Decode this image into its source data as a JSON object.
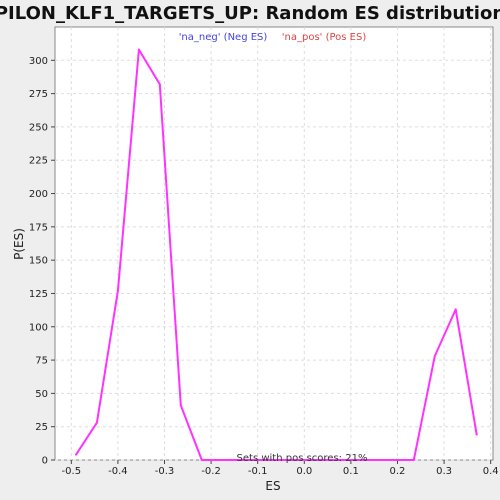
{
  "chart_data": {
    "type": "line",
    "title": "PILON_KLF1_TARGETS_UP: Random ES distribution",
    "xlabel": "ES",
    "ylabel": "P(ES)",
    "xlim": [
      -0.535,
      0.405
    ],
    "ylim": [
      0,
      325
    ],
    "x_ticks": [
      -0.5,
      -0.4,
      -0.3,
      -0.2,
      -0.1,
      0.0,
      0.1,
      0.2,
      0.3,
      0.4
    ],
    "x_tick_labels": [
      "-0.5",
      "-0.4",
      "-0.3",
      "-0.2",
      "-0.1",
      "0.0",
      "0.1",
      "0.2",
      "0.3",
      "0.4"
    ],
    "y_ticks": [
      0,
      25,
      50,
      75,
      100,
      125,
      150,
      175,
      200,
      225,
      250,
      275,
      300
    ],
    "y_tick_labels": [
      "0",
      "25",
      "50",
      "75",
      "100",
      "125",
      "150",
      "175",
      "200",
      "225",
      "250",
      "275",
      "300"
    ],
    "grid": true,
    "legend": [
      {
        "label": "'na_neg' (Neg ES)",
        "color": "#4444dd"
      },
      {
        "label": "'na_pos' (Pos ES)",
        "color": "#dd4444"
      }
    ],
    "annotation": "Sets with pos scores: 21%",
    "series": [
      {
        "color": "#ff33ff",
        "x": [
          -0.49,
          -0.445,
          -0.4,
          -0.355,
          -0.31,
          -0.265,
          -0.22,
          -0.175,
          -0.13,
          0.19,
          0.235,
          0.28,
          0.325,
          0.37
        ],
        "y": [
          4,
          28,
          127,
          308,
          282,
          41,
          0,
          0,
          0,
          0,
          0,
          78,
          113,
          19
        ]
      }
    ]
  }
}
